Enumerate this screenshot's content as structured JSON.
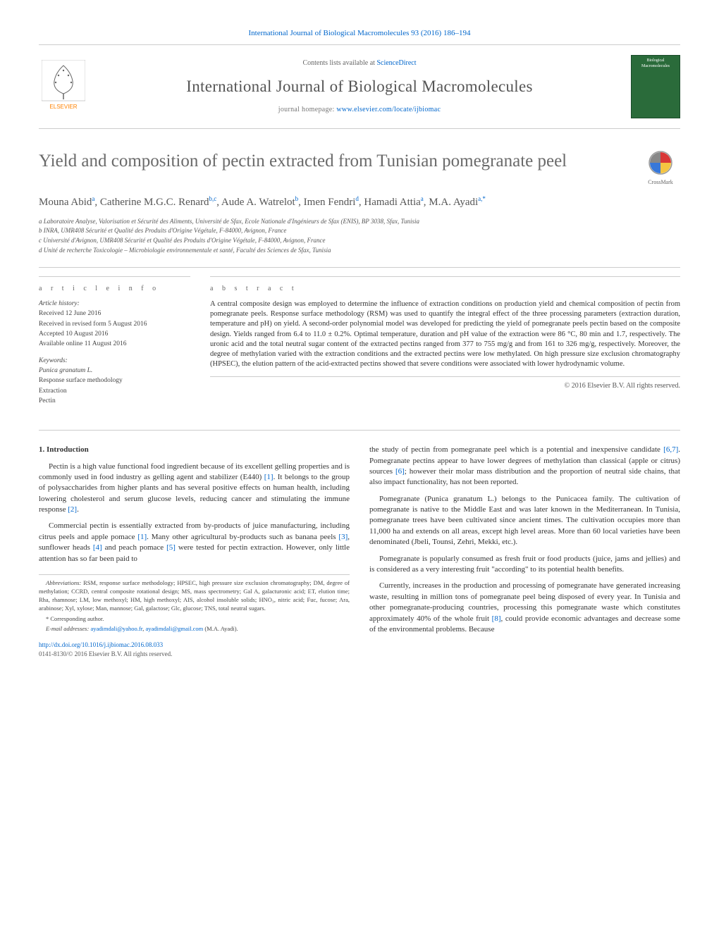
{
  "header": {
    "top_link": "International Journal of Biological Macromolecules 93 (2016) 186–194",
    "contents_prefix": "Contents lists available at ",
    "contents_link": "ScienceDirect",
    "journal_title": "International Journal of Biological Macromolecules",
    "homepage_prefix": "journal homepage: ",
    "homepage_url": "www.elsevier.com/locate/ijbiomac",
    "cover_line1": "Biological",
    "cover_line2": "Macromolecules",
    "elsevier_label": "ELSEVIER"
  },
  "title": "Yield and composition of pectin extracted from Tunisian pomegranate peel",
  "crossmark_label": "CrossMark",
  "authors_html": "Mouna Abid<sup>a</sup>, Catherine M.G.C. Renard<sup>b,c</sup>, Aude A. Watrelot<sup>b</sup>, Imen Fendri<sup>d</sup>, Hamadi Attia<sup>a</sup>, M.A. Ayadi<sup>a,*</sup>",
  "affiliations": [
    "a Laboratoire Analyse, Valorisation et Sécurité des Aliments, Université de Sfax, Ecole Nationale d'Ingénieurs de Sfax (ENIS), BP 3038, Sfax, Tunisia",
    "b INRA, UMR408 Sécurité et Qualité des Produits d'Origine Végétale, F-84000, Avignon, France",
    "c Université d'Avignon, UMR408 Sécurité et Qualité des Produits d'Origine Végétale, F-84000, Avignon, France",
    "d Unité de recherche Toxicologie – Microbiologie environnementale et santé, Faculté des Sciences de Sfax, Tunisia"
  ],
  "info": {
    "head": "a r t i c l e   i n f o",
    "history_label": "Article history:",
    "history": [
      "Received 12 June 2016",
      "Received in revised form 5 August 2016",
      "Accepted 10 August 2016",
      "Available online 11 August 2016"
    ],
    "keywords_label": "Keywords:",
    "keywords": [
      "Punica granatum L.",
      "Response surface methodology",
      "Extraction",
      "Pectin"
    ]
  },
  "abstract": {
    "head": "a b s t r a c t",
    "text": "A central composite design was employed to determine the influence of extraction conditions on production yield and chemical composition of pectin from pomegranate peels. Response surface methodology (RSM) was used to quantify the integral effect of the three processing parameters (extraction duration, temperature and pH) on yield. A second-order polynomial model was developed for predicting the yield of pomegranate peels pectin based on the composite design. Yields ranged from 6.4 to 11.0 ± 0.2%. Optimal temperature, duration and pH value of the extraction were 86 °C, 80 min and 1.7, respectively. The uronic acid and the total neutral sugar content of the extracted pectins ranged from 377 to 755 mg/g and from 161 to 326 mg/g, respectively. Moreover, the degree of methylation varied with the extraction conditions and the extracted pectins were low methylated. On high pressure size exclusion chromatography (HPSEC), the elution pattern of the acid-extracted pectins showed that severe conditions were associated with lower hydrodynamic volume.",
    "copyright": "© 2016 Elsevier B.V. All rights reserved."
  },
  "body": {
    "section_head": "1. Introduction",
    "left_paras": [
      "Pectin is a high value functional food ingredient because of its excellent gelling properties and is commonly used in food industry as gelling agent and stabilizer (E440) [1]. It belongs to the group of polysaccharides from higher plants and has several positive effects on human health, including lowering cholesterol and serum glucose levels, reducing cancer and stimulating the immune response [2].",
      "Commercial pectin is essentially extracted from by-products of juice manufacturing, including citrus peels and apple pomace [1]. Many other agricultural by-products such as banana peels [3], sunflower heads [4] and peach pomace [5] were tested for pectin extraction. However, only little attention has so far been paid to"
    ],
    "right_paras": [
      "the study of pectin from pomegranate peel which is a potential and inexpensive candidate [6,7]. Pomegranate pectins appear to have lower degrees of methylation than classical (apple or citrus) sources [6]; however their molar mass distribution and the proportion of neutral side chains, that also impact functionality, has not been reported.",
      "Pomegranate (Punica granatum L.) belongs to the Punicacea family. The cultivation of pomegranate is native to the Middle East and was later known in the Mediterranean. In Tunisia, pomegranate trees have been cultivated since ancient times. The cultivation occupies more than 11,000 ha and extends on all areas, except high level areas. More than 60 local varieties have been denominated (Jbeli, Tounsi, Zehri, Mekki, etc.).",
      "Pomegranate is popularly consumed as fresh fruit or food products (juice, jams and jellies) and is considered as a very interesting fruit \"according\" to its potential health benefits.",
      "Currently, increases in the production and processing of pomegranate have generated increasing waste, resulting in million tons of pomegranate peel being disposed of every year. In Tunisia and other pomegranate-producing countries, processing this pomegranate waste which constitutes approximately 40% of the whole fruit [8], could provide economic advantages and decrease some of the environmental problems. Because"
    ]
  },
  "footnotes": {
    "abbrev_label": "Abbreviations:",
    "abbrev_text": " RSM, response surface methodology; HPSEC, high pressure size exclusion chromatography; DM, degree of methylation; CCRD, central composite rotational design; MS, mass spectrometry; Gal A, galacturonic acid; ET, elution time; Rha, rhamnose; LM, low methoxyl; HM, high methoxyl; AIS, alcohol insoluble solids; HNO₃, nitric acid; Fuc, fucose; Ara, arabinose; Xyl, xylose; Man, mannose; Gal, galactose; Glc, glucose; TNS, total neutral sugars.",
    "corresponding": "* Corresponding author.",
    "email_label": "E-mail addresses: ",
    "email1": "ayadimdali@yahoo.fr",
    "email_sep": ", ",
    "email2": "ayadimdali@gmail.com",
    "email_suffix": " (M.A. Ayadi)."
  },
  "doi": {
    "url": "http://dx.doi.org/10.1016/j.ijbiomac.2016.08.033",
    "issn": "0141-8130/© 2016 Elsevier B.V. All rights reserved."
  },
  "colors": {
    "link": "#0066cc",
    "text": "#333333",
    "muted": "#666666",
    "border": "#cccccc",
    "cover_bg": "#2a6b3a",
    "elsevier_orange": "#ff8200"
  }
}
